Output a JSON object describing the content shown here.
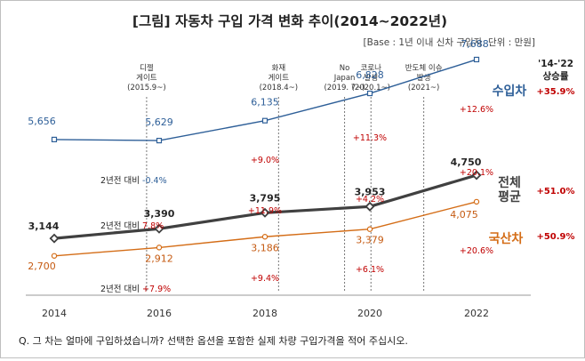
{
  "chart_data": {
    "type": "line",
    "title": "[그림] 자동차 구입 가격 변화 추이(2014~2022년)",
    "subtitle": "[Base : 1년 이내 신차 구입자, 단위 : 만원]",
    "x": [
      "2014",
      "2016",
      "2018",
      "2020",
      "2022"
    ],
    "series": [
      {
        "name": "수입차",
        "color": "#2e5f98",
        "values": [
          5656,
          5629,
          6135,
          6828,
          7688
        ],
        "change_labels": [
          "",
          "2년전 대비 -0.4%",
          "+9.0%",
          "+11.3%",
          "+12.6%"
        ],
        "growth_label": "+35.9%"
      },
      {
        "name": "전체 평균",
        "name_lines": [
          "전체",
          "평균"
        ],
        "color": "#404040",
        "values": [
          3144,
          3390,
          3795,
          3953,
          4750
        ],
        "change_labels": [
          "",
          "2년전 대비 7.8%",
          "+11.9%",
          "+4.2%",
          "+20.1%"
        ],
        "growth_label": "+51.0%"
      },
      {
        "name": "국산차",
        "color": "#d46d17",
        "values": [
          2700,
          2912,
          3186,
          3379,
          4075
        ],
        "change_labels": [
          "",
          "2년전 대비 +7.9%",
          "+9.4%",
          "+6.1%",
          "+20.6%"
        ],
        "growth_label": "+50.9%"
      }
    ],
    "growth_header": [
      "'14-'22",
      "상승률"
    ],
    "events": [
      {
        "lines": [
          "디젤",
          "게이트",
          "(2015.9~)"
        ],
        "year": 2015.75
      },
      {
        "lines": [
          "화재",
          "게이트",
          "(2018.4~)"
        ],
        "year": 2018.25
      },
      {
        "lines": [
          "No",
          "Japan",
          "(2019. 7~)"
        ],
        "year": 2019.5
      },
      {
        "lines": [
          "코로나",
          "발생",
          "(2020.1~)"
        ],
        "year": 2020.0
      },
      {
        "lines": [
          "반도체 이슈",
          "발생",
          "(2021~)"
        ],
        "year": 2021.0
      }
    ],
    "change_color_positive": "#c00000",
    "change_color_negative": "#2e5f98",
    "question": "Q. 그 차는 얼마에 구입하셨습니까? 선택한 옵션을 포함한 실제 차량 구입가격을 적어 주십시오."
  }
}
